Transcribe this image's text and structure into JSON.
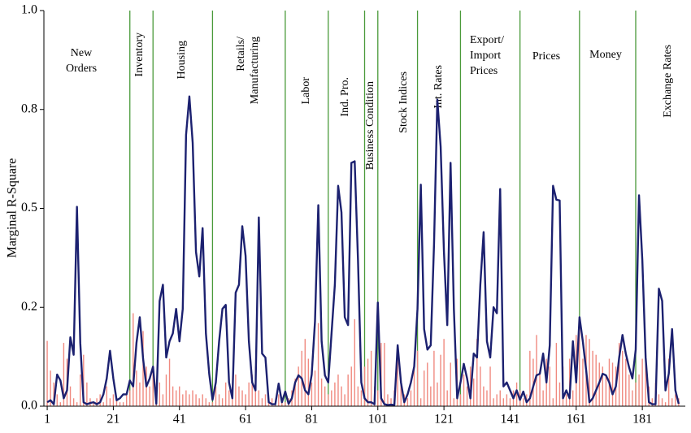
{
  "chart_data": {
    "type": "line",
    "y_label": "Marginal R-Square",
    "xlim": [
      0,
      194
    ],
    "ylim": [
      0,
      1
    ],
    "xticks": [
      1,
      21,
      41,
      61,
      81,
      101,
      121,
      141,
      161,
      181
    ],
    "yticks": [
      {
        "value": 0,
        "label": "0.0"
      },
      {
        "value": 0.25,
        "label": "0.2"
      },
      {
        "value": 0.5,
        "label": "0.5"
      },
      {
        "value": 0.75,
        "label": "0.8"
      },
      {
        "value": 1,
        "label": "1.0"
      }
    ],
    "separator_color": "#4a9a3a",
    "separators": [
      26,
      33,
      51,
      73,
      86,
      97,
      101,
      113,
      126,
      144,
      162,
      179
    ],
    "groups": [
      {
        "lines": [
          "New",
          "Orders"
        ],
        "rotated": false
      },
      {
        "lines": [
          "Inventory"
        ],
        "rotated": true
      },
      {
        "lines": [
          "Housing"
        ],
        "rotated": true
      },
      {
        "lines": [
          "Retails/",
          "Manufacturing"
        ],
        "rotated": true
      },
      {
        "lines": [
          "Labor"
        ],
        "rotated": true
      },
      {
        "lines": [
          "Ind. Pro."
        ],
        "rotated": true
      },
      {
        "lines": [
          "Business Condition"
        ],
        "rotated": true
      },
      {
        "lines": [
          "Stock Indices"
        ],
        "rotated": true
      },
      {
        "lines": [
          "Int. Rates"
        ],
        "rotated": true
      },
      {
        "lines": [
          "Export/",
          "Import",
          "Prices"
        ],
        "rotated": false
      },
      {
        "lines": [
          "Prices"
        ],
        "rotated": false
      },
      {
        "lines": [
          "Money"
        ],
        "rotated": false
      },
      {
        "lines": [
          "Exchange Rates"
        ],
        "rotated": true
      }
    ],
    "series": [
      {
        "type": "bar",
        "color": "#f08a80",
        "values": [
          0.165,
          0.09,
          0.06,
          0.03,
          0.01,
          0.16,
          0.12,
          0.05,
          0.02,
          0.01,
          0.08,
          0.13,
          0.06,
          0.02,
          0.01,
          0.02,
          0.03,
          0.01,
          0.05,
          0.02,
          0.03,
          0.02,
          0.01,
          0.01,
          0.03,
          0.04,
          0.235,
          0.09,
          0.06,
          0.19,
          0.1,
          0.05,
          0.09,
          0.04,
          0.06,
          0.03,
          0.08,
          0.12,
          0.05,
          0.04,
          0.05,
          0.03,
          0.04,
          0.03,
          0.04,
          0.03,
          0.02,
          0.03,
          0.02,
          0.01,
          0.01,
          0.05,
          0.03,
          0.02,
          0.06,
          0.04,
          0.03,
          0.08,
          0.05,
          0.04,
          0.03,
          0.06,
          0.08,
          0.1,
          0.04,
          0.02,
          0.03,
          0.01,
          0.02,
          0.01,
          0.03,
          0.02,
          0.01,
          0.02,
          0.04,
          0.07,
          0.1,
          0.14,
          0.17,
          0.12,
          0.06,
          0.09,
          0.21,
          0.07,
          0.05,
          0.03,
          0.04,
          0.06,
          0.08,
          0.05,
          0.03,
          0.08,
          0.1,
          0.22,
          0.05,
          0.04,
          0.1,
          0.12,
          0.14,
          0.05,
          0.04,
          0.16,
          0.16,
          0.03,
          0.02,
          0.04,
          0.13,
          0.06,
          0.03,
          0.02,
          0.04,
          0.11,
          0.14,
          0.02,
          0.09,
          0.11,
          0.05,
          0.14,
          0.06,
          0.13,
          0.17,
          0.04,
          0.11,
          0.02,
          0.12,
          0.03,
          0.08,
          0.05,
          0.1,
          0.07,
          0.17,
          0.1,
          0.05,
          0.04,
          0.1,
          0.02,
          0.03,
          0.04,
          0.02,
          0.03,
          0.02,
          0.04,
          0.06,
          0.04,
          0.02,
          0.03,
          0.14,
          0.12,
          0.18,
          0.08,
          0.04,
          0.12,
          0.1,
          0.02,
          0.16,
          0.06,
          0.1,
          0.03,
          0.12,
          0.04,
          0.18,
          0.2,
          0.12,
          0.18,
          0.17,
          0.14,
          0.13,
          0.11,
          0.1,
          0.08,
          0.12,
          0.11,
          0.1,
          0.16,
          0.14,
          0.12,
          0.08,
          0.04,
          0.06,
          0.08,
          0.12,
          0.15,
          0.05,
          0.02,
          0.06,
          0.03,
          0.02,
          0.01,
          0.12,
          0.02,
          0.03,
          0.02
        ]
      },
      {
        "type": "line",
        "color": "#1c2170",
        "values": [
          0.01,
          0.015,
          0.005,
          0.08,
          0.065,
          0.02,
          0.04,
          0.174,
          0.13,
          0.504,
          0.16,
          0.01,
          0.005,
          0.008,
          0.01,
          0.005,
          0.01,
          0.03,
          0.07,
          0.14,
          0.07,
          0.015,
          0.02,
          0.03,
          0.03,
          0.065,
          0.05,
          0.16,
          0.225,
          0.12,
          0.05,
          0.07,
          0.1,
          0.006,
          0.266,
          0.307,
          0.123,
          0.164,
          0.184,
          0.246,
          0.164,
          0.246,
          0.686,
          0.783,
          0.666,
          0.39,
          0.328,
          0.45,
          0.184,
          0.082,
          0.016,
          0.06,
          0.164,
          0.246,
          0.256,
          0.06,
          0.02,
          0.287,
          0.307,
          0.455,
          0.38,
          0.164,
          0.06,
          0.04,
          0.477,
          0.133,
          0.123,
          0.01,
          0.005,
          0.005,
          0.057,
          0.01,
          0.037,
          0.006,
          0.02,
          0.06,
          0.078,
          0.07,
          0.04,
          0.03,
          0.08,
          0.215,
          0.508,
          0.164,
          0.078,
          0.06,
          0.184,
          0.307,
          0.557,
          0.49,
          0.225,
          0.205,
          0.615,
          0.619,
          0.369,
          0.06,
          0.02,
          0.01,
          0.01,
          0.005,
          0.262,
          0.02,
          0.005,
          0.003,
          0.004,
          0.003,
          0.154,
          0.06,
          0.01,
          0.03,
          0.06,
          0.1,
          0.246,
          0.56,
          0.195,
          0.143,
          0.154,
          0.41,
          0.775,
          0.656,
          0.39,
          0.205,
          0.615,
          0.246,
          0.02,
          0.06,
          0.107,
          0.07,
          0.02,
          0.133,
          0.123,
          0.307,
          0.44,
          0.164,
          0.123,
          0.25,
          0.235,
          0.549,
          0.05,
          0.06,
          0.04,
          0.02,
          0.04,
          0.016,
          0.037,
          0.01,
          0.02,
          0.05,
          0.078,
          0.082,
          0.133,
          0.06,
          0.154,
          0.557,
          0.522,
          0.52,
          0.02,
          0.04,
          0.02,
          0.164,
          0.06,
          0.225,
          0.164,
          0.092,
          0.01,
          0.02,
          0.04,
          0.06,
          0.082,
          0.078,
          0.06,
          0.03,
          0.05,
          0.123,
          0.18,
          0.133,
          0.098,
          0.07,
          0.143,
          0.533,
          0.369,
          0.123,
          0.01,
          0.005,
          0.005,
          0.297,
          0.266,
          0.04,
          0.082,
          0.195,
          0.04,
          0.006
        ]
      }
    ]
  }
}
